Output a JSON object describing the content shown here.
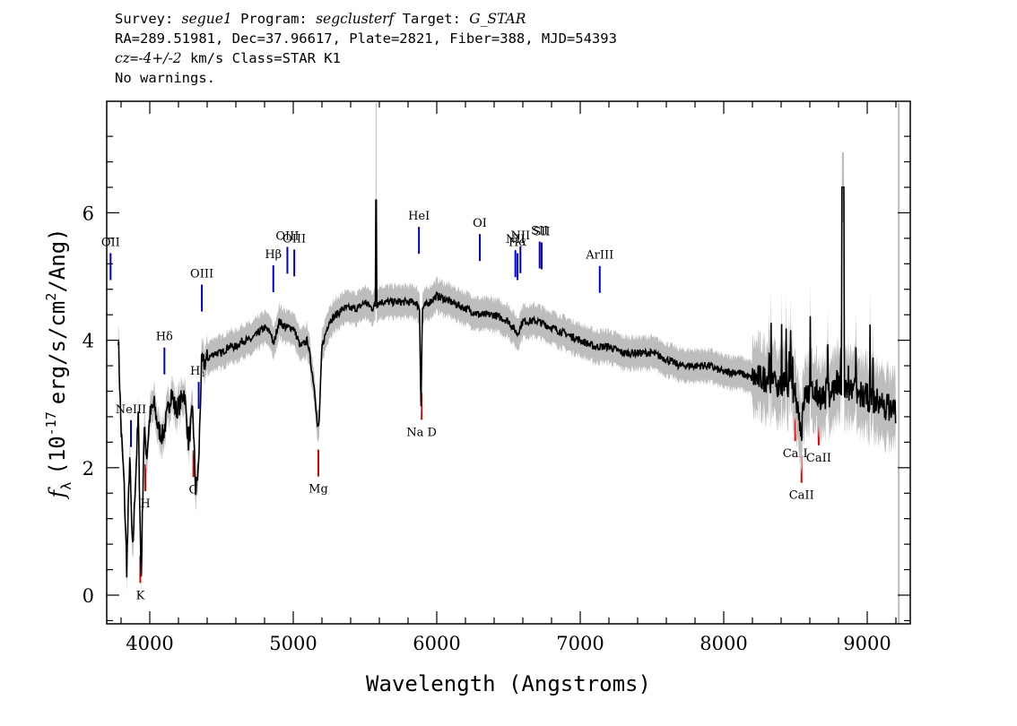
{
  "header": {
    "line1": {
      "survey_label": "Survey:",
      "survey": "segue1",
      "program_label": "Program:",
      "program": "segclusterf",
      "target_label": "Target:",
      "target": "G_STAR"
    },
    "line2": "RA=289.51981, Dec=37.96617, Plate=2821, Fiber=388, MJD=54393",
    "line3": {
      "cz_label": "cz",
      "cz_eq": "=",
      "cz": "-4+/-2",
      "unit_class": "km/s Class=STAR K1"
    },
    "line4": "No warnings."
  },
  "colors": {
    "flux": "#000000",
    "error": "#bdbdbd",
    "emission": "#0000cc",
    "absorption": "#dd0000"
  },
  "chart_data": {
    "type": "line",
    "title": "",
    "xlabel": "Wavelength (Angstroms)",
    "ylabel_parts": {
      "f": "f",
      "sub": "λ",
      "open": "(10",
      "exp": "-17",
      "mid": "erg/s/cm",
      "exp2": "2",
      "close": "/Ang)"
    },
    "xlim": [
      3700,
      9300
    ],
    "ylim": [
      -0.45,
      7.75
    ],
    "x_ticks": [
      4000,
      5000,
      6000,
      7000,
      8000,
      9000
    ],
    "x_tick_labels": [
      "4000",
      "5000",
      "6000",
      "7000",
      "8000",
      "9000"
    ],
    "y_ticks": [
      0,
      2,
      4,
      6
    ],
    "y_tick_labels": [
      "0",
      "2",
      "4",
      "6"
    ],
    "series": [
      {
        "x": [
          3780,
          3800,
          3820,
          3840,
          3860,
          3880,
          3900,
          3920,
          3940,
          3960,
          3980,
          4000,
          4030,
          4060,
          4090,
          4120,
          4150,
          4180,
          4210,
          4240,
          4270,
          4300,
          4320,
          4340,
          4360,
          4400,
          4450,
          4500,
          4550,
          4600,
          4650,
          4700,
          4750,
          4800,
          4850,
          4860,
          4900,
          4950,
          5000,
          5050,
          5100,
          5150,
          5170,
          5180,
          5200,
          5250,
          5300,
          5350,
          5400,
          5450,
          5500,
          5550,
          5600,
          5650,
          5700,
          5750,
          5800,
          5850,
          5880,
          5890,
          5900,
          5950,
          6000,
          6100,
          6200,
          6300,
          6400,
          6500,
          6563,
          6600,
          6700,
          6800,
          6900,
          7000,
          7100,
          7200,
          7300,
          7400,
          7500,
          7600,
          7700,
          7800,
          7900,
          8000,
          8100,
          8200,
          8300,
          8400,
          8450,
          8500,
          8542,
          8560,
          8600,
          8700,
          8800,
          8900,
          9000,
          9100,
          9200
        ],
        "flux": [
          4.1,
          2.6,
          1.8,
          0.4,
          2.2,
          0.6,
          1.8,
          2.8,
          0.2,
          2.6,
          2.2,
          2.8,
          3.0,
          2.6,
          2.5,
          2.8,
          3.2,
          2.9,
          3.0,
          3.2,
          2.4,
          2.9,
          1.6,
          2.0,
          3.6,
          3.7,
          3.8,
          3.8,
          3.9,
          3.9,
          4.0,
          4.0,
          4.1,
          4.2,
          4.1,
          3.9,
          4.3,
          4.2,
          4.2,
          3.9,
          4.0,
          3.2,
          2.6,
          2.7,
          3.9,
          4.3,
          4.4,
          4.5,
          4.5,
          4.5,
          4.6,
          4.5,
          4.6,
          4.6,
          4.6,
          4.6,
          4.6,
          4.6,
          4.5,
          2.9,
          4.5,
          4.6,
          4.7,
          4.6,
          4.5,
          4.4,
          4.4,
          4.3,
          4.1,
          4.3,
          4.3,
          4.2,
          4.1,
          4.0,
          3.9,
          3.9,
          3.8,
          3.8,
          3.8,
          3.7,
          3.6,
          3.6,
          3.6,
          3.5,
          3.5,
          3.4,
          3.4,
          3.3,
          3.3,
          3.2,
          2.55,
          3.1,
          3.2,
          3.1,
          3.3,
          3.2,
          3.1,
          3.0,
          2.9
        ]
      }
    ],
    "emission_lines": [
      {
        "label": "OII",
        "wave": 3727
      },
      {
        "label": "NeIII",
        "wave": 3869
      },
      {
        "label": "Hδ",
        "wave": 4102
      },
      {
        "label": "Hγ",
        "wave": 4341
      },
      {
        "label": "OIII",
        "wave": 4363
      },
      {
        "label": "Hβ",
        "wave": 4861
      },
      {
        "label": "OIII",
        "wave": 4959
      },
      {
        "label": "OIII",
        "wave": 5007
      },
      {
        "label": "HeI",
        "wave": 5876
      },
      {
        "label": "OI",
        "wave": 6300
      },
      {
        "label": "NII",
        "wave": 6548
      },
      {
        "label": "Hα",
        "wave": 6563
      },
      {
        "label": "NII",
        "wave": 6583
      },
      {
        "label": "SII",
        "wave": 6717
      },
      {
        "label": "SII",
        "wave": 6731
      },
      {
        "label": "ArIII",
        "wave": 7136
      }
    ],
    "absorption_lines": [
      {
        "label": "K",
        "wave": 3934
      },
      {
        "label": "H",
        "wave": 3969
      },
      {
        "label": "G",
        "wave": 4304
      },
      {
        "label": "Mg",
        "wave": 5175
      },
      {
        "label": "Na D",
        "wave": 5894
      },
      {
        "label": "CaII",
        "wave": 8498
      },
      {
        "label": "CaII",
        "wave": 8542
      },
      {
        "label": "CaII",
        "wave": 8662
      }
    ]
  }
}
